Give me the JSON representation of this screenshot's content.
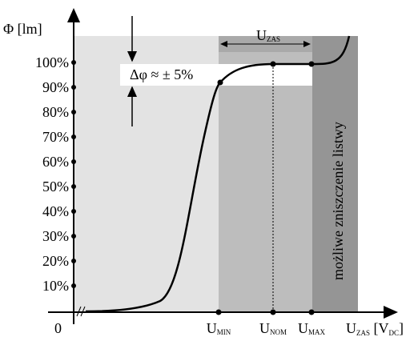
{
  "axis": {
    "y_label": "Φ [lm]",
    "origin": "0",
    "y_ticks": [
      "100%",
      "90%",
      "80%",
      "70%",
      "60%",
      "50%",
      "40%",
      "30%",
      "20%",
      "10%"
    ],
    "x_ticks": [
      {
        "main": "U",
        "sub": "MIN"
      },
      {
        "main": "U",
        "sub": "NOM"
      },
      {
        "main": "U",
        "sub": "MAX"
      }
    ],
    "x_label": {
      "main": "U",
      "sub": "ZAS",
      "unit": " [V",
      "unit_sub": "DC",
      "close": "]"
    }
  },
  "annotations": {
    "delta": "Δφ ≈ ± 5%",
    "range": {
      "main": "U",
      "sub": "ZAS"
    },
    "warning": "możliwe zniszczenie listwy"
  }
}
